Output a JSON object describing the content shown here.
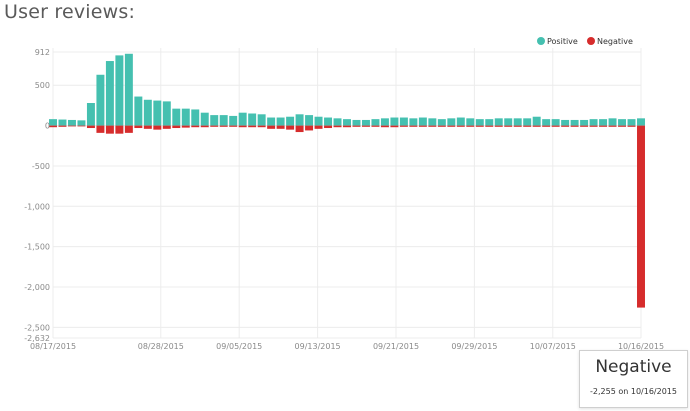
{
  "page": {
    "title": "User reviews:"
  },
  "colors": {
    "positive": "#45c0b0",
    "negative": "#d62c2c",
    "grid": "#ececec"
  },
  "tooltip": {
    "title": "Negative",
    "detail": "-2,255 on 10/16/2015"
  },
  "chart_data": {
    "type": "bar",
    "stacked": true,
    "title": "User reviews:",
    "x_start": "08/17/2015",
    "x_end": "10/16/2015",
    "x_tick_labels": [
      "08/17/2015",
      "08/28/2015",
      "09/05/2015",
      "09/13/2015",
      "09/21/2015",
      "09/29/2015",
      "10/07/2015",
      "10/16/2015"
    ],
    "y_tick_labels": [
      "912",
      "500",
      "0",
      "-500",
      "-1,000",
      "-1,500",
      "-2,000",
      "-2,500",
      "-2,632"
    ],
    "ylim": [
      -2632,
      912
    ],
    "grid": true,
    "legend_position": "top-right",
    "series": [
      {
        "name": "Positive",
        "color": "#45c0b0",
        "values": [
          80,
          75,
          70,
          65,
          280,
          630,
          800,
          870,
          890,
          360,
          320,
          310,
          300,
          210,
          210,
          200,
          160,
          130,
          130,
          120,
          160,
          150,
          140,
          100,
          100,
          110,
          140,
          130,
          110,
          100,
          90,
          80,
          70,
          70,
          80,
          90,
          100,
          100,
          90,
          100,
          90,
          80,
          90,
          100,
          90,
          80,
          80,
          90,
          90,
          90,
          90,
          110,
          80,
          80,
          70,
          70,
          70,
          80,
          80,
          90,
          80,
          80,
          90
        ]
      },
      {
        "name": "Negative",
        "values": [
          -20,
          -15,
          -10,
          -10,
          -30,
          -90,
          -100,
          -100,
          -90,
          -30,
          -40,
          -50,
          -40,
          -30,
          -25,
          -20,
          -20,
          -15,
          -15,
          -15,
          -20,
          -20,
          -20,
          -40,
          -40,
          -50,
          -80,
          -60,
          -40,
          -30,
          -20,
          -20,
          -15,
          -15,
          -15,
          -20,
          -20,
          -15,
          -15,
          -15,
          -15,
          -15,
          -15,
          -15,
          -15,
          -15,
          -15,
          -15,
          -15,
          -15,
          -15,
          -15,
          -15,
          -15,
          -15,
          -15,
          -15,
          -15,
          -15,
          -15,
          -15,
          -15,
          -2255
        ],
        "color": "#d62c2c"
      }
    ]
  }
}
